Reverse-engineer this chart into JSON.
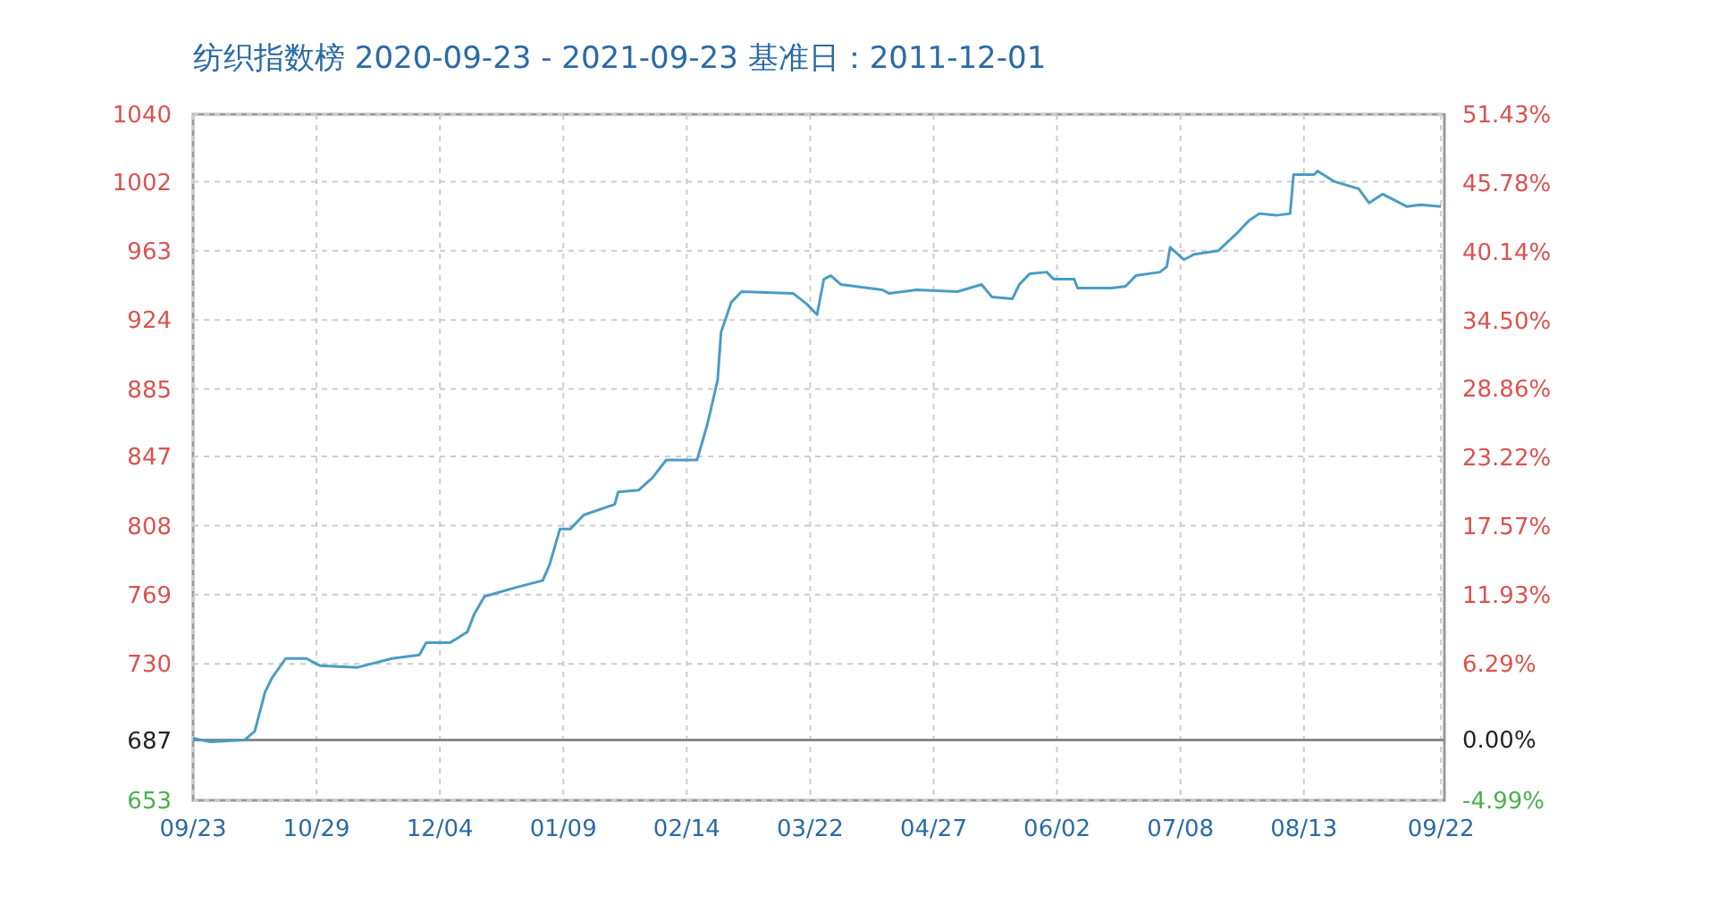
{
  "chart_data": {
    "type": "line",
    "title": "纺织指数榜 2020-09-23 - 2021-09-23   基准日：2011-12-01",
    "series": [
      {
        "color": "#4a9cc4",
        "x": [
          "2020-09-23",
          "2020-09-28",
          "2020-10-08",
          "2020-10-11",
          "2020-10-14",
          "2020-10-16",
          "2020-10-20",
          "2020-10-26",
          "2020-10-30",
          "2020-11-10",
          "2020-11-20",
          "2020-11-28",
          "2020-11-30",
          "2020-12-07",
          "2020-12-12",
          "2020-12-14",
          "2020-12-17",
          "2020-12-26",
          "2021-01-03",
          "2021-01-05",
          "2021-01-08",
          "2021-01-11",
          "2021-01-15",
          "2021-01-24",
          "2021-01-25",
          "2021-01-31",
          "2021-02-04",
          "2021-02-08",
          "2021-02-17",
          "2021-02-20",
          "2021-02-23",
          "2021-02-24",
          "2021-02-27",
          "2021-03-02",
          "2021-03-17",
          "2021-03-21",
          "2021-03-24",
          "2021-03-26",
          "2021-03-28",
          "2021-03-31",
          "2021-04-12",
          "2021-04-14",
          "2021-04-22",
          "2021-05-04",
          "2021-05-11",
          "2021-05-14",
          "2021-05-20",
          "2021-05-22",
          "2021-05-25",
          "2021-05-30",
          "2021-06-01",
          "2021-06-07",
          "2021-06-08",
          "2021-06-18",
          "2021-06-22",
          "2021-06-25",
          "2021-07-02",
          "2021-07-04",
          "2021-07-05",
          "2021-07-09",
          "2021-07-12",
          "2021-07-19",
          "2021-07-24",
          "2021-07-28",
          "2021-07-31",
          "2021-08-05",
          "2021-08-09",
          "2021-08-10",
          "2021-08-16",
          "2021-08-17",
          "2021-08-22",
          "2021-08-29",
          "2021-09-01",
          "2021-09-05",
          "2021-09-12",
          "2021-09-16",
          "2021-09-22"
        ],
        "values": [
          688,
          686,
          687,
          692,
          714,
          722,
          733,
          733,
          729,
          728,
          733,
          735,
          742,
          742,
          748,
          758,
          768,
          773,
          777,
          786,
          806,
          806,
          814,
          820,
          827,
          828,
          835,
          845,
          845,
          865,
          890,
          917,
          934,
          940,
          939,
          933,
          927,
          947,
          949,
          944,
          941,
          939,
          941,
          940,
          944,
          937,
          936,
          944,
          950,
          951,
          947,
          947,
          942,
          942,
          943,
          949,
          951,
          954,
          965,
          958,
          961,
          963,
          972,
          980,
          984,
          983,
          984,
          1006,
          1006,
          1008,
          1002,
          998,
          990,
          995,
          988,
          989,
          988
        ]
      }
    ],
    "xlim": [
      "2020-09-23",
      "2021-09-23"
    ],
    "xticks": [
      {
        "value": "2020-09-23",
        "label": "09/23"
      },
      {
        "value": "2020-10-29",
        "label": "10/29"
      },
      {
        "value": "2020-12-04",
        "label": "12/04"
      },
      {
        "value": "2021-01-09",
        "label": "01/09"
      },
      {
        "value": "2021-02-14",
        "label": "02/14"
      },
      {
        "value": "2021-03-22",
        "label": "03/22"
      },
      {
        "value": "2021-04-27",
        "label": "04/27"
      },
      {
        "value": "2021-06-02",
        "label": "06/02"
      },
      {
        "value": "2021-07-08",
        "label": "07/08"
      },
      {
        "value": "2021-08-13",
        "label": "08/13"
      },
      {
        "value": "2021-09-22",
        "label": "09/22"
      }
    ],
    "ylim": [
      653,
      1040
    ],
    "yticks": [
      653,
      687,
      730,
      769,
      808,
      847,
      885,
      924,
      963,
      1002,
      1040
    ],
    "y2lim": [
      -4.99,
      51.43
    ],
    "y2ticks": [
      {
        "value": -4.99,
        "label": "-4.99%"
      },
      {
        "value": 0,
        "label": "0.00%"
      },
      {
        "value": 6.29,
        "label": "6.29%"
      },
      {
        "value": 11.93,
        "label": "11.93%"
      },
      {
        "value": 17.57,
        "label": "17.57%"
      },
      {
        "value": 23.22,
        "label": "23.22%"
      },
      {
        "value": 28.86,
        "label": "28.86%"
      },
      {
        "value": 34.5,
        "label": "34.50%"
      },
      {
        "value": 40.14,
        "label": "40.14%"
      },
      {
        "value": 45.78,
        "label": "45.78%"
      },
      {
        "value": 51.43,
        "label": "51.43%"
      }
    ],
    "ref_lines": [
      {
        "axis": "y",
        "value": 687,
        "color": "#888888"
      }
    ],
    "grid": true,
    "line_style": "solid",
    "marker": "none"
  }
}
